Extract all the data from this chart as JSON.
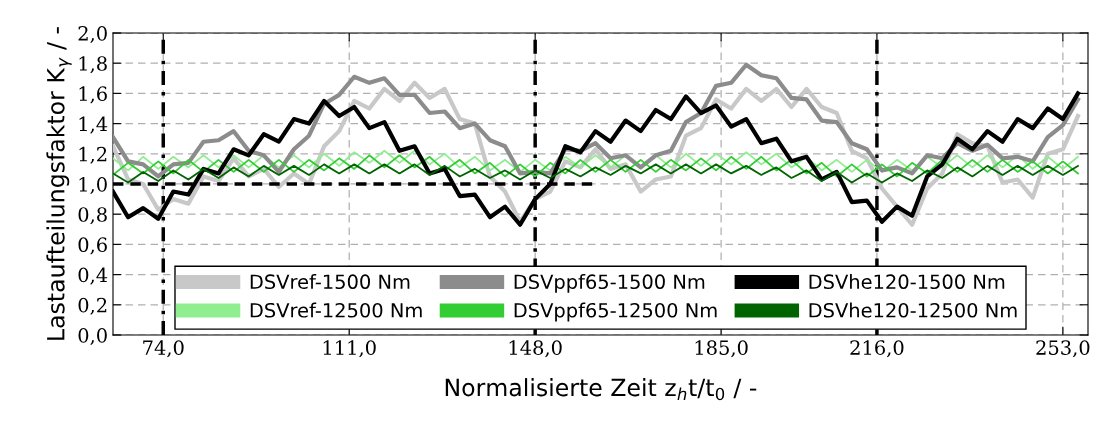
{
  "chart_data": {
    "type": "line",
    "xlabel": "Normalisierte Zeit z$_{h}$t/t$_{0}$ / -",
    "ylabel": "Lastaufteilungsfaktor K$_{γ}$ / -",
    "x": [
      64,
      67,
      70,
      73,
      76,
      79,
      82,
      85,
      88,
      91,
      94,
      97,
      100,
      103,
      106,
      109,
      112,
      115,
      118,
      121,
      124,
      127,
      130,
      133,
      136,
      139,
      142,
      145,
      148,
      151,
      154,
      157,
      160,
      163,
      166,
      169,
      172,
      175,
      178,
      181,
      184,
      187,
      190,
      193,
      196,
      199,
      202,
      205,
      208,
      211,
      214,
      217,
      220,
      223,
      226,
      229,
      232,
      235,
      238,
      241,
      244,
      247,
      250,
      253,
      256
    ],
    "series": [
      {
        "name": "DSVref-1500 Nm",
        "color": "#c8c8c8",
        "values": [
          1.25,
          1.03,
          1.0,
          0.83,
          0.9,
          0.87,
          1.05,
          1.02,
          1.17,
          1.05,
          1.1,
          0.98,
          1.07,
          1.0,
          1.25,
          1.35,
          1.55,
          1.5,
          1.63,
          1.55,
          1.67,
          1.57,
          1.63,
          1.43,
          1.4,
          1.05,
          0.95,
          0.75,
          0.9,
          0.95,
          1.15,
          1.11,
          1.23,
          1.1,
          1.13,
          0.95,
          1.03,
          1.05,
          1.32,
          1.37,
          1.56,
          1.5,
          1.63,
          1.55,
          1.63,
          1.51,
          1.63,
          1.51,
          1.47,
          1.22,
          1.17,
          0.97,
          0.85,
          0.73,
          0.97,
          1.07,
          1.33,
          1.27,
          1.25,
          1.01,
          1.03,
          0.91,
          1.2,
          1.23,
          1.45
        ]
      },
      {
        "name": "DSVref-12500 Nm",
        "color": "#90ee90",
        "values": [
          1.17,
          1.09,
          1.18,
          1.1,
          1.18,
          1.11,
          1.19,
          1.11,
          1.19,
          1.11,
          1.19,
          1.11,
          1.19,
          1.11,
          1.2,
          1.12,
          1.21,
          1.14,
          1.22,
          1.14,
          1.22,
          1.13,
          1.2,
          1.11,
          1.18,
          1.09,
          1.16,
          1.08,
          1.16,
          1.09,
          1.18,
          1.11,
          1.19,
          1.11,
          1.19,
          1.11,
          1.19,
          1.11,
          1.2,
          1.12,
          1.2,
          1.13,
          1.21,
          1.13,
          1.2,
          1.11,
          1.18,
          1.09,
          1.16,
          1.08,
          1.16,
          1.08,
          1.16,
          1.09,
          1.18,
          1.11,
          1.19,
          1.11,
          1.19,
          1.11,
          1.19,
          1.1,
          1.18,
          1.1,
          1.18
        ]
      },
      {
        "name": "DSVppf65-1500 Nm",
        "color": "#8c8c8c",
        "values": [
          1.31,
          1.15,
          1.13,
          1.05,
          1.13,
          1.14,
          1.28,
          1.29,
          1.35,
          1.22,
          1.19,
          1.08,
          1.23,
          1.32,
          1.53,
          1.59,
          1.71,
          1.67,
          1.7,
          1.59,
          1.59,
          1.47,
          1.48,
          1.37,
          1.4,
          1.29,
          1.25,
          1.07,
          1.08,
          1.07,
          1.23,
          1.22,
          1.27,
          1.17,
          1.19,
          1.11,
          1.19,
          1.22,
          1.41,
          1.47,
          1.65,
          1.67,
          1.79,
          1.72,
          1.7,
          1.57,
          1.56,
          1.42,
          1.41,
          1.27,
          1.23,
          1.09,
          1.11,
          1.07,
          1.19,
          1.17,
          1.27,
          1.22,
          1.26,
          1.17,
          1.18,
          1.15,
          1.31,
          1.39,
          1.56
        ]
      },
      {
        "name": "DSVppf65-12500 Nm",
        "color": "#32cd32",
        "values": [
          1.06,
          1.14,
          1.07,
          1.15,
          1.07,
          1.16,
          1.08,
          1.16,
          1.08,
          1.16,
          1.08,
          1.16,
          1.08,
          1.16,
          1.09,
          1.17,
          1.1,
          1.19,
          1.11,
          1.19,
          1.11,
          1.18,
          1.09,
          1.16,
          1.07,
          1.14,
          1.05,
          1.13,
          1.05,
          1.14,
          1.07,
          1.16,
          1.08,
          1.16,
          1.08,
          1.16,
          1.08,
          1.16,
          1.09,
          1.17,
          1.09,
          1.18,
          1.1,
          1.18,
          1.09,
          1.16,
          1.07,
          1.14,
          1.05,
          1.13,
          1.05,
          1.13,
          1.05,
          1.14,
          1.07,
          1.16,
          1.08,
          1.16,
          1.08,
          1.16,
          1.08,
          1.15,
          1.07,
          1.15,
          1.07
        ]
      },
      {
        "name": "DSVhe120-1500 Nm",
        "color": "#000000",
        "values": [
          0.95,
          0.78,
          0.84,
          0.77,
          0.95,
          0.93,
          1.1,
          1.07,
          1.23,
          1.19,
          1.33,
          1.28,
          1.43,
          1.4,
          1.55,
          1.45,
          1.51,
          1.37,
          1.41,
          1.22,
          1.25,
          1.07,
          1.1,
          0.92,
          0.93,
          0.78,
          0.85,
          0.73,
          0.9,
          1.0,
          1.25,
          1.21,
          1.35,
          1.28,
          1.42,
          1.35,
          1.49,
          1.43,
          1.58,
          1.47,
          1.52,
          1.38,
          1.43,
          1.27,
          1.3,
          1.15,
          1.18,
          1.03,
          1.08,
          0.88,
          0.89,
          0.75,
          0.85,
          0.79,
          1.05,
          1.13,
          1.3,
          1.23,
          1.35,
          1.28,
          1.43,
          1.37,
          1.5,
          1.43,
          1.6
        ]
      },
      {
        "name": "DSVhe120-12500 Nm",
        "color": "#006400",
        "values": [
          1.07,
          1.01,
          1.08,
          1.02,
          1.09,
          1.03,
          1.1,
          1.04,
          1.11,
          1.05,
          1.12,
          1.06,
          1.12,
          1.06,
          1.13,
          1.07,
          1.13,
          1.07,
          1.13,
          1.07,
          1.13,
          1.06,
          1.12,
          1.05,
          1.1,
          1.04,
          1.09,
          1.03,
          1.09,
          1.04,
          1.1,
          1.05,
          1.11,
          1.06,
          1.12,
          1.07,
          1.13,
          1.07,
          1.13,
          1.07,
          1.13,
          1.07,
          1.12,
          1.06,
          1.11,
          1.04,
          1.09,
          1.02,
          1.08,
          1.01,
          1.07,
          1.01,
          1.07,
          1.02,
          1.09,
          1.04,
          1.11,
          1.05,
          1.12,
          1.06,
          1.12,
          1.06,
          1.12,
          1.06,
          1.12
        ]
      },
      {
        "color": "#000000",
        "x": [
          64,
          159.5
        ],
        "values": [
          1.0,
          1.0
        ],
        "line_style": "dashed"
      }
    ],
    "ref_lines": [
      {
        "axis": "x",
        "value": 74,
        "color": "#000000",
        "line_style": "dashdot"
      },
      {
        "axis": "x",
        "value": 148,
        "color": "#000000",
        "line_style": "dashdot"
      },
      {
        "axis": "x",
        "value": 216,
        "color": "#000000",
        "line_style": "dashdot"
      }
    ],
    "xlim": [
      64,
      258
    ],
    "xticks": [
      {
        "value": 74,
        "label": "74,0"
      },
      {
        "value": 111,
        "label": "111,0"
      },
      {
        "value": 148,
        "label": "148,0"
      },
      {
        "value": 185,
        "label": "185,0"
      },
      {
        "value": 216,
        "label": "216,0"
      },
      {
        "value": 253,
        "label": "253,0"
      }
    ],
    "ylim": [
      0,
      2
    ],
    "yticks": [
      {
        "value": 0,
        "label": "0,0"
      },
      {
        "value": 0.2,
        "label": "0,2"
      },
      {
        "value": 0.4,
        "label": "0,4"
      },
      {
        "value": 0.6,
        "label": "0,6"
      },
      {
        "value": 0.8,
        "label": "0,8"
      },
      {
        "value": 1.0,
        "label": "1,0"
      },
      {
        "value": 1.2,
        "label": "1,2"
      },
      {
        "value": 1.4,
        "label": "1,4"
      },
      {
        "value": 1.6,
        "label": "1,6"
      },
      {
        "value": 1.8,
        "label": "1,8"
      },
      {
        "value": 2.0,
        "label": "2,0"
      }
    ],
    "grid": true,
    "legend": "bottom",
    "line_style": "solid",
    "marker": "none"
  }
}
